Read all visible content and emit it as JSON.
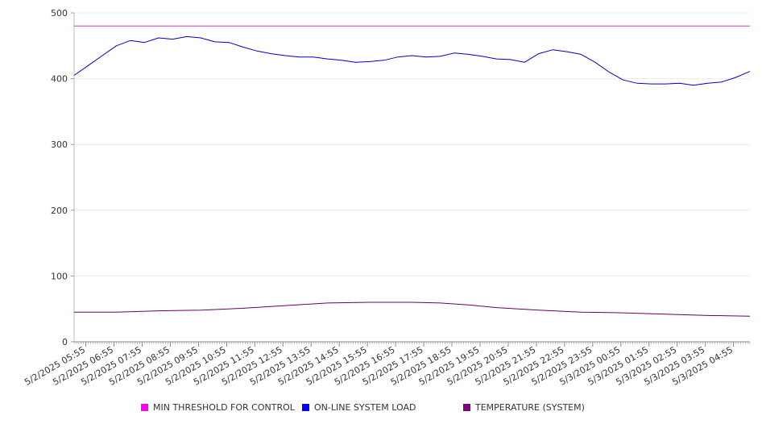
{
  "chart_data": {
    "type": "line",
    "title": "",
    "xlabel": "",
    "ylabel": "",
    "ylim": [
      0,
      500
    ],
    "y_ticks": [
      0,
      100,
      200,
      300,
      400,
      500
    ],
    "grid": "horizontal",
    "legend_position": "bottom",
    "x_range": [
      "5/2/2025 05:30",
      "5/3/2025 05:30"
    ],
    "x_tick_labels": [
      "5/2/2025 05:55",
      "5/2/2025 06:55",
      "5/2/2025 07:55",
      "5/2/2025 08:55",
      "5/2/2025 09:55",
      "5/2/2025 10:55",
      "5/2/2025 11:55",
      "5/2/2025 12:55",
      "5/2/2025 13:55",
      "5/2/2025 14:55",
      "5/2/2025 15:55",
      "5/2/2025 16:55",
      "5/2/2025 17:55",
      "5/2/2025 18:55",
      "5/2/2025 19:55",
      "5/2/2025 20:55",
      "5/2/2025 21:55",
      "5/2/2025 22:55",
      "5/2/2025 23:55",
      "5/3/2025 00:55",
      "5/3/2025 01:55",
      "5/3/2025 02:55",
      "5/3/2025 03:55",
      "5/3/2025 04:55"
    ],
    "series": [
      {
        "name": "MIN THRESHOLD FOR CONTROL",
        "color": "#cc33cc",
        "legend_color": "#ff00ff",
        "x": [
          "5/2/2025 05:30",
          "5/3/2025 05:30"
        ],
        "y": [
          480,
          480
        ]
      },
      {
        "name": "ON-LINE SYSTEM LOAD",
        "color": "#0000cc",
        "legend_color": "#0000ff",
        "x": [
          "5/2/2025 05:30",
          "5/2/2025 06:00",
          "5/2/2025 06:30",
          "5/2/2025 07:00",
          "5/2/2025 07:30",
          "5/2/2025 08:00",
          "5/2/2025 08:30",
          "5/2/2025 09:00",
          "5/2/2025 09:30",
          "5/2/2025 10:00",
          "5/2/2025 10:30",
          "5/2/2025 11:00",
          "5/2/2025 11:30",
          "5/2/2025 12:00",
          "5/2/2025 12:30",
          "5/2/2025 13:00",
          "5/2/2025 13:30",
          "5/2/2025 14:00",
          "5/2/2025 14:30",
          "5/2/2025 15:00",
          "5/2/2025 15:30",
          "5/2/2025 16:00",
          "5/2/2025 16:30",
          "5/2/2025 17:00",
          "5/2/2025 17:30",
          "5/2/2025 18:00",
          "5/2/2025 18:30",
          "5/2/2025 19:00",
          "5/2/2025 19:30",
          "5/2/2025 20:00",
          "5/2/2025 20:30",
          "5/2/2025 21:00",
          "5/2/2025 21:30",
          "5/2/2025 22:00",
          "5/2/2025 22:30",
          "5/2/2025 23:00",
          "5/2/2025 23:30",
          "5/3/2025 00:00",
          "5/3/2025 00:30",
          "5/3/2025 01:00",
          "5/3/2025 01:30",
          "5/3/2025 02:00",
          "5/3/2025 02:30",
          "5/3/2025 03:00",
          "5/3/2025 03:30",
          "5/3/2025 04:00",
          "5/3/2025 04:30",
          "5/3/2025 05:00",
          "5/3/2025 05:30"
        ],
        "y": [
          405,
          420,
          435,
          450,
          458,
          455,
          462,
          460,
          464,
          462,
          456,
          455,
          448,
          442,
          438,
          435,
          433,
          433,
          430,
          428,
          425,
          426,
          428,
          433,
          435,
          433,
          434,
          439,
          437,
          434,
          430,
          429,
          425,
          438,
          444,
          441,
          437,
          425,
          410,
          398,
          393,
          392,
          392,
          393,
          390,
          393,
          395,
          402,
          411
        ]
      },
      {
        "name": "TEMPERATURE (SYSTEM)",
        "color": "#660066",
        "legend_color": "#800080",
        "x": [
          "5/2/2025 05:30",
          "5/2/2025 07:00",
          "5/2/2025 08:30",
          "5/2/2025 10:00",
          "5/2/2025 11:30",
          "5/2/2025 13:00",
          "5/2/2025 14:30",
          "5/2/2025 16:00",
          "5/2/2025 17:30",
          "5/2/2025 18:30",
          "5/2/2025 19:30",
          "5/2/2025 20:30",
          "5/2/2025 22:00",
          "5/2/2025 23:30",
          "5/3/2025 01:00",
          "5/3/2025 02:30",
          "5/3/2025 04:00",
          "5/3/2025 05:30"
        ],
        "y": [
          45,
          45,
          47,
          48,
          51,
          55,
          59,
          60,
          60,
          59,
          56,
          52,
          48,
          45,
          44,
          42,
          40,
          39
        ]
      }
    ]
  }
}
